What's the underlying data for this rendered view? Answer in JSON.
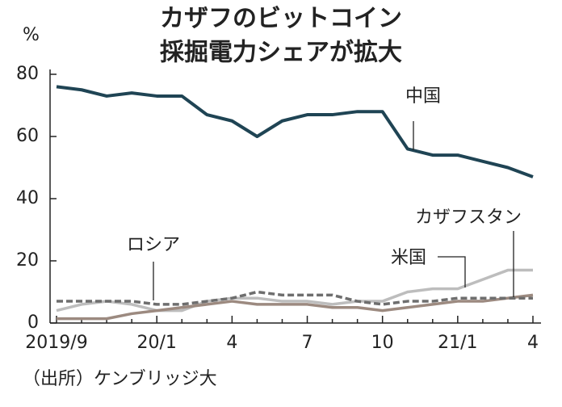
{
  "chart_data": {
    "type": "line",
    "title": [
      "カザフのビットコイン",
      "採掘電力シェアが拡大"
    ],
    "y_unit": "%",
    "source": "（出所）ケンブリッジ大",
    "categories": [
      "2019/9",
      null,
      null,
      null,
      "20/1",
      null,
      null,
      "4",
      null,
      null,
      "7",
      null,
      null,
      "10",
      null,
      null,
      "21/1",
      null,
      null,
      "4"
    ],
    "ylim": [
      0,
      80
    ],
    "yticks": [
      0,
      20,
      40,
      60,
      80
    ],
    "series": [
      {
        "name": "中国",
        "color": "#1f4454",
        "dashed": false,
        "values": [
          76,
          75,
          73,
          74,
          73,
          73,
          67,
          65,
          60,
          65,
          67,
          67,
          68,
          68,
          56,
          54,
          54,
          52,
          50,
          47
        ]
      },
      {
        "name": "米国",
        "color": "#bdbdbd",
        "dashed": false,
        "values": [
          4,
          6,
          7,
          6,
          4,
          4,
          7,
          8,
          8,
          7,
          7,
          6,
          7,
          7,
          10,
          11,
          11,
          14,
          17,
          17
        ]
      },
      {
        "name": "ロシア",
        "color": "#6e6e6e",
        "dashed": true,
        "values": [
          7,
          7,
          7,
          7,
          6,
          6,
          7,
          8,
          10,
          9,
          9,
          9,
          7,
          6,
          7,
          7,
          8,
          8,
          8,
          8
        ]
      },
      {
        "name": "カザフスタン",
        "color": "#9c8a80",
        "dashed": false,
        "values": [
          1.4,
          1.4,
          1.4,
          3,
          4,
          5,
          6,
          7,
          6,
          6,
          6,
          5,
          5,
          4,
          5,
          6,
          7,
          7,
          8,
          9
        ]
      }
    ]
  }
}
